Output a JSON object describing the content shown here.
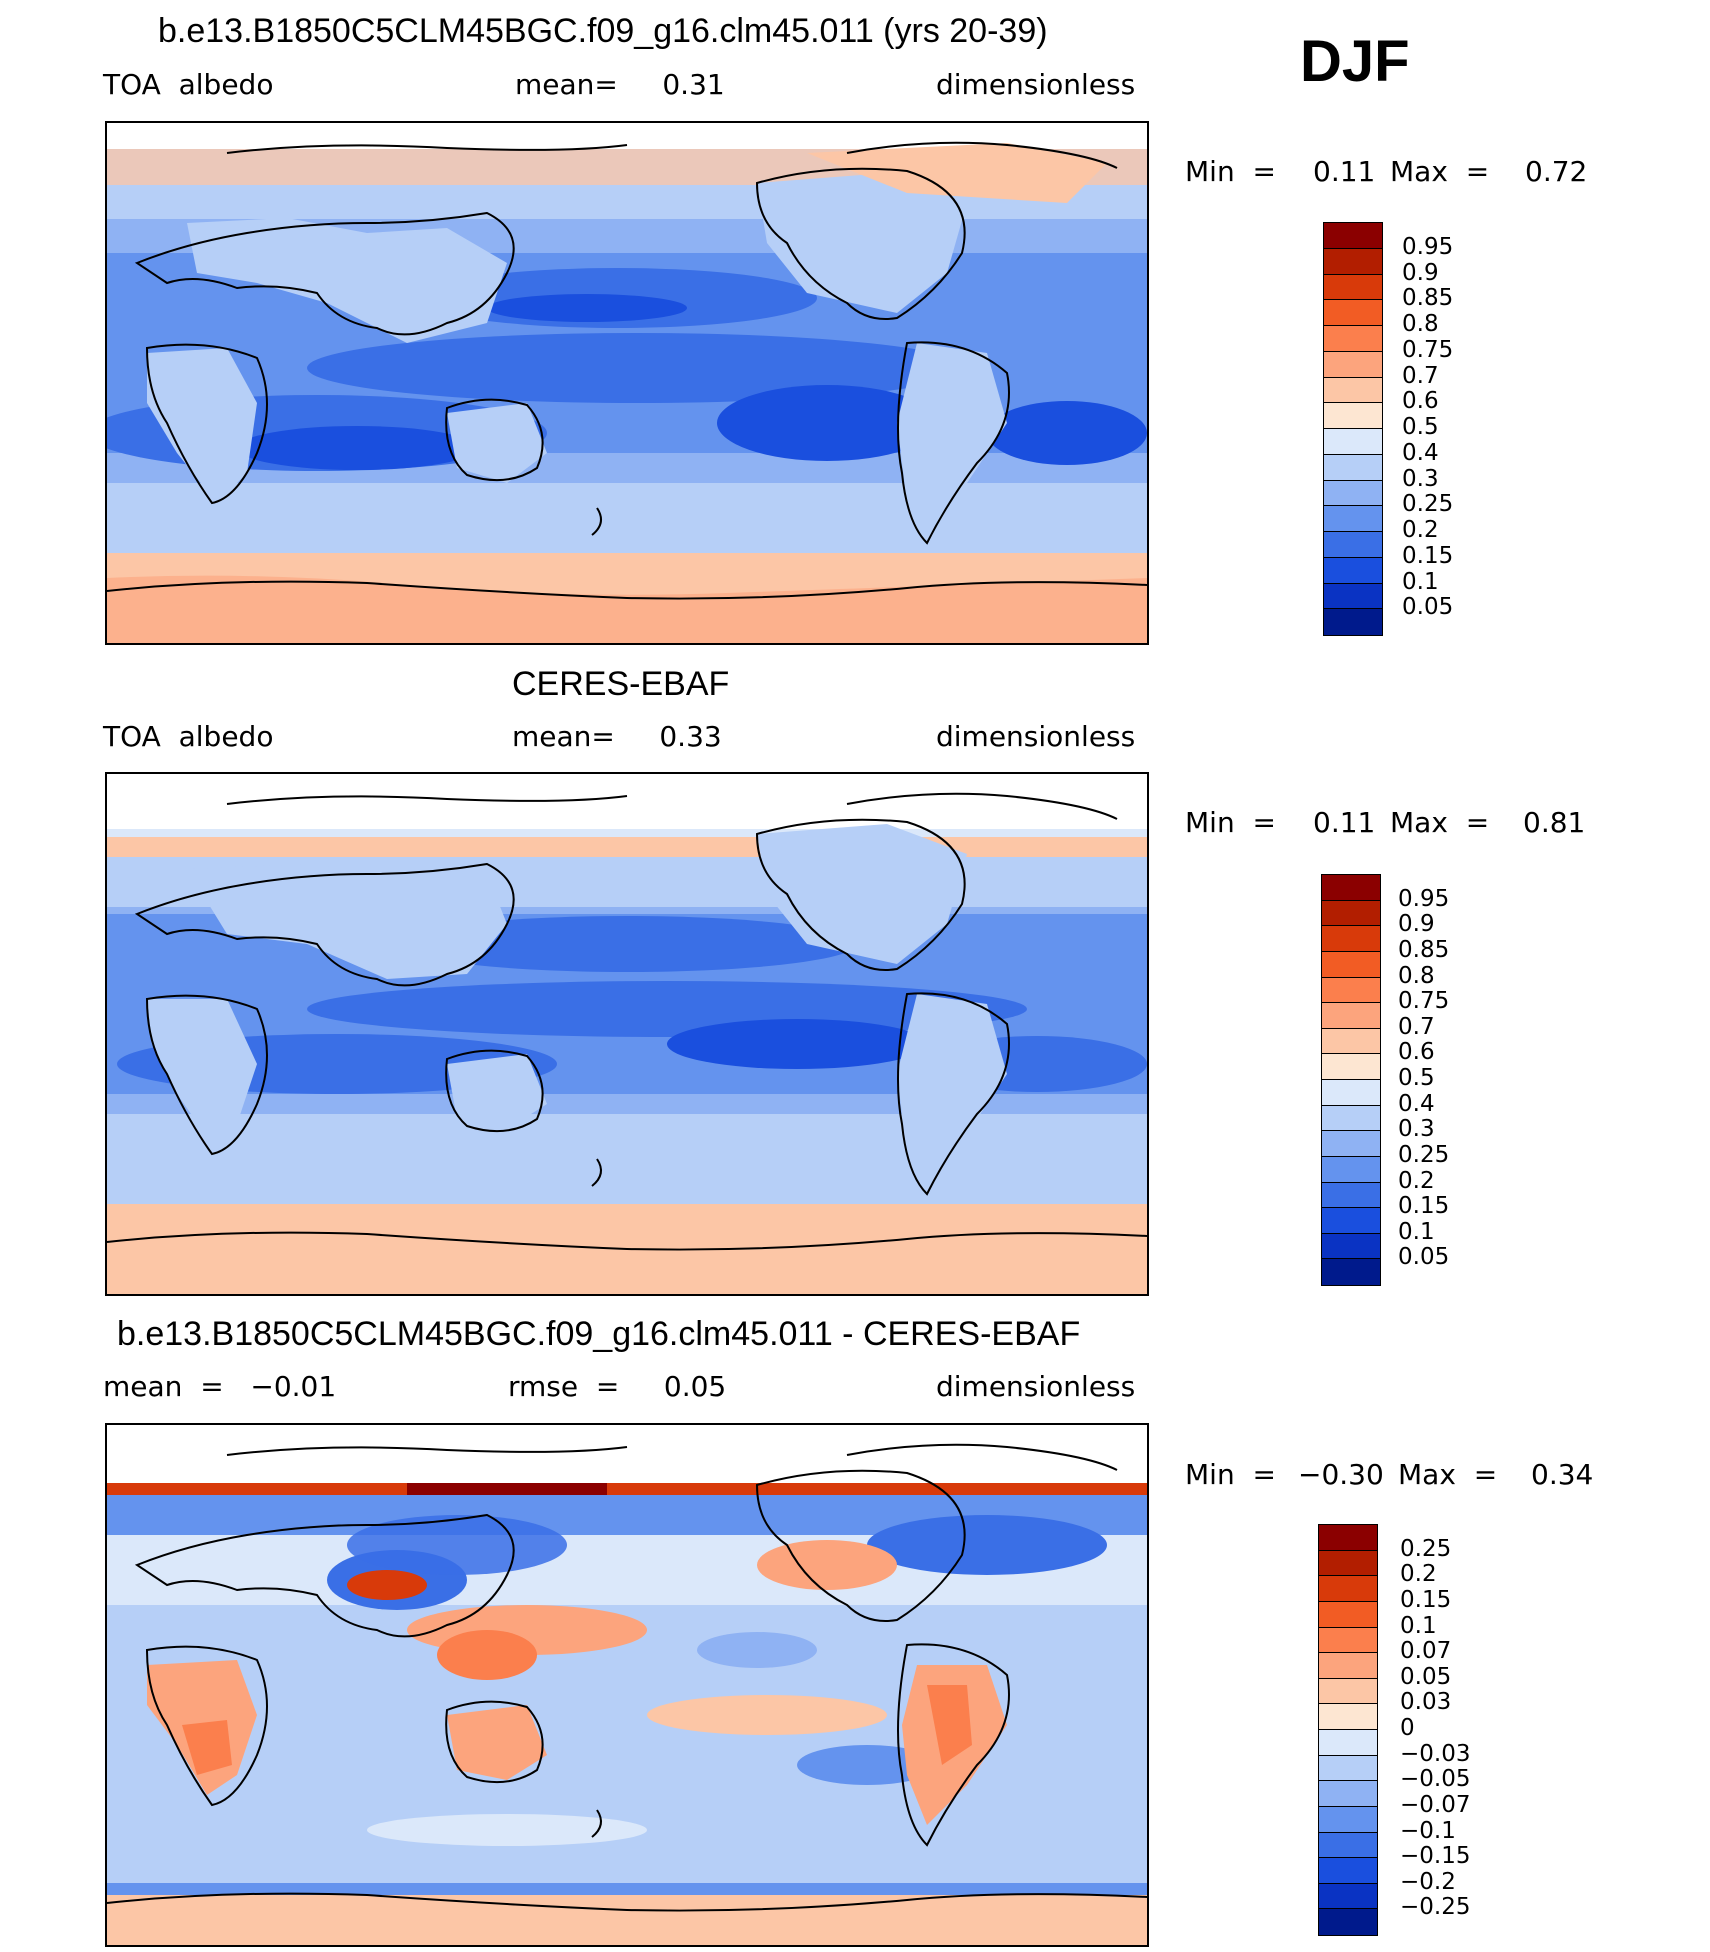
{
  "season": "DJF",
  "panels": [
    {
      "title": "b.e13.B1850C5CLM45BGC.f09_g16.clm45.011 (yrs 20-39)",
      "left_label": "TOA  albedo",
      "center_label": "mean=     0.31",
      "right_label": "dimensionless",
      "min_label": "Min  =",
      "min_value": "0.11",
      "max_label": "Max  =",
      "max_value": "0.72"
    },
    {
      "title": "CERES-EBAF",
      "left_label": "TOA  albedo",
      "center_label": "mean=     0.33",
      "right_label": "dimensionless",
      "min_label": "Min  =",
      "min_value": "0.11",
      "max_label": "Max  =",
      "max_value": "0.81"
    },
    {
      "title": "b.e13.B1850C5CLM45BGC.f09_g16.clm45.011 - CERES-EBAF",
      "left_label": "mean  =   −0.01",
      "center_label": "rmse  =     0.05",
      "right_label": "dimensionless",
      "min_label": "Min  =",
      "min_value": "−0.30",
      "max_label": "Max  =",
      "max_value": "0.34"
    }
  ],
  "colorbars": [
    {
      "labels": [
        "0.95",
        "0.9",
        "0.85",
        "0.8",
        "0.75",
        "0.7",
        "0.6",
        "0.5",
        "0.4",
        "0.3",
        "0.25",
        "0.2",
        "0.15",
        "0.1",
        "0.05"
      ],
      "colors": [
        "#8b0000",
        "#b21e00",
        "#d83a0a",
        "#f25c24",
        "#fb7f4d",
        "#fca47d",
        "#fcc6a6",
        "#fde6d2",
        "#dbe8fa",
        "#b6cff7",
        "#8fb2f3",
        "#6493ee",
        "#3a6fe6",
        "#1a4fde",
        "#0a33c3",
        "#001a8c"
      ]
    },
    {
      "labels": [
        "0.95",
        "0.9",
        "0.85",
        "0.8",
        "0.75",
        "0.7",
        "0.6",
        "0.5",
        "0.4",
        "0.3",
        "0.25",
        "0.2",
        "0.15",
        "0.1",
        "0.05"
      ],
      "colors": [
        "#8b0000",
        "#b21e00",
        "#d83a0a",
        "#f25c24",
        "#fb7f4d",
        "#fca47d",
        "#fcc6a6",
        "#fde6d2",
        "#dbe8fa",
        "#b6cff7",
        "#8fb2f3",
        "#6493ee",
        "#3a6fe6",
        "#1a4fde",
        "#0a33c3",
        "#001a8c"
      ]
    },
    {
      "labels": [
        "0.25",
        "0.2",
        "0.15",
        "0.1",
        "0.07",
        "0.05",
        "0.03",
        "0",
        "−0.03",
        "−0.05",
        "−0.07",
        "−0.1",
        "−0.15",
        "−0.2",
        "−0.25"
      ],
      "colors": [
        "#8b0000",
        "#b21e00",
        "#d83a0a",
        "#f25c24",
        "#fb7f4d",
        "#fca47d",
        "#fcc6a6",
        "#fde6d2",
        "#dbe8fa",
        "#b6cff7",
        "#8fb2f3",
        "#6493ee",
        "#3a6fe6",
        "#1a4fde",
        "#0a33c3",
        "#001a8c"
      ]
    }
  ],
  "chart_data": [
    {
      "type": "heatmap",
      "title": "b.e13.B1850C5CLM45BGC.f09_g16.clm45.011 (yrs 20-39)",
      "field": "TOA  albedo",
      "units": "dimensionless",
      "mean": 0.31,
      "min": 0.11,
      "max": 0.72,
      "contour_levels": [
        0.05,
        0.1,
        0.15,
        0.2,
        0.25,
        0.3,
        0.4,
        0.5,
        0.6,
        0.7,
        0.75,
        0.8,
        0.85,
        0.9,
        0.95
      ]
    },
    {
      "type": "heatmap",
      "title": "CERES-EBAF",
      "field": "TOA  albedo",
      "units": "dimensionless",
      "mean": 0.33,
      "min": 0.11,
      "max": 0.81,
      "contour_levels": [
        0.05,
        0.1,
        0.15,
        0.2,
        0.25,
        0.3,
        0.4,
        0.5,
        0.6,
        0.7,
        0.75,
        0.8,
        0.85,
        0.9,
        0.95
      ]
    },
    {
      "type": "heatmap",
      "title": "b.e13.B1850C5CLM45BGC.f09_g16.clm45.011 - CERES-EBAF",
      "units": "dimensionless",
      "mean": -0.01,
      "rmse": 0.05,
      "min": -0.3,
      "max": 0.34,
      "contour_levels": [
        -0.25,
        -0.2,
        -0.15,
        -0.1,
        -0.07,
        -0.05,
        -0.03,
        0,
        0.03,
        0.05,
        0.07,
        0.1,
        0.15,
        0.2,
        0.25
      ]
    }
  ]
}
